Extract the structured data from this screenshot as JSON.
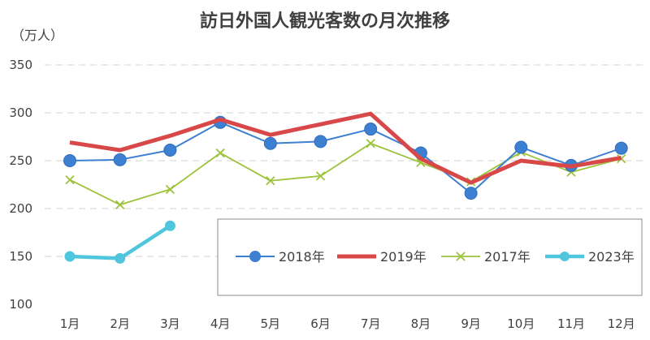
{
  "chart_data": {
    "type": "line",
    "title": "訪日外国人観光客数の月次推移",
    "ylabel": "（万人）",
    "xlabel": "",
    "categories": [
      "1月",
      "2月",
      "3月",
      "4月",
      "5月",
      "6月",
      "7月",
      "8月",
      "9月",
      "10月",
      "11月",
      "12月"
    ],
    "ylim": [
      100,
      350
    ],
    "yticks": [
      100,
      150,
      200,
      250,
      300,
      350
    ],
    "grid": true,
    "legend_position": "bottom-right",
    "series": [
      {
        "name": "2018年",
        "color": "#3d7fd1",
        "marker": "circle",
        "values": [
          250,
          251,
          261,
          290,
          268,
          270,
          283,
          258,
          216,
          264,
          245,
          263
        ]
      },
      {
        "name": "2019年",
        "color": "#d94848",
        "marker": "none",
        "values": [
          269,
          261,
          276,
          293,
          277,
          288,
          299,
          252,
          227,
          250,
          244,
          253
        ]
      },
      {
        "name": "2017年",
        "color": "#9cc33a",
        "marker": "x",
        "values": [
          230,
          204,
          220,
          258,
          229,
          234,
          268,
          248,
          228,
          259,
          238,
          252
        ]
      },
      {
        "name": "2023年",
        "color": "#4fc6dd",
        "marker": "circle",
        "values": [
          150,
          148,
          182,
          null,
          null,
          null,
          null,
          null,
          null,
          null,
          null,
          null
        ]
      }
    ]
  }
}
